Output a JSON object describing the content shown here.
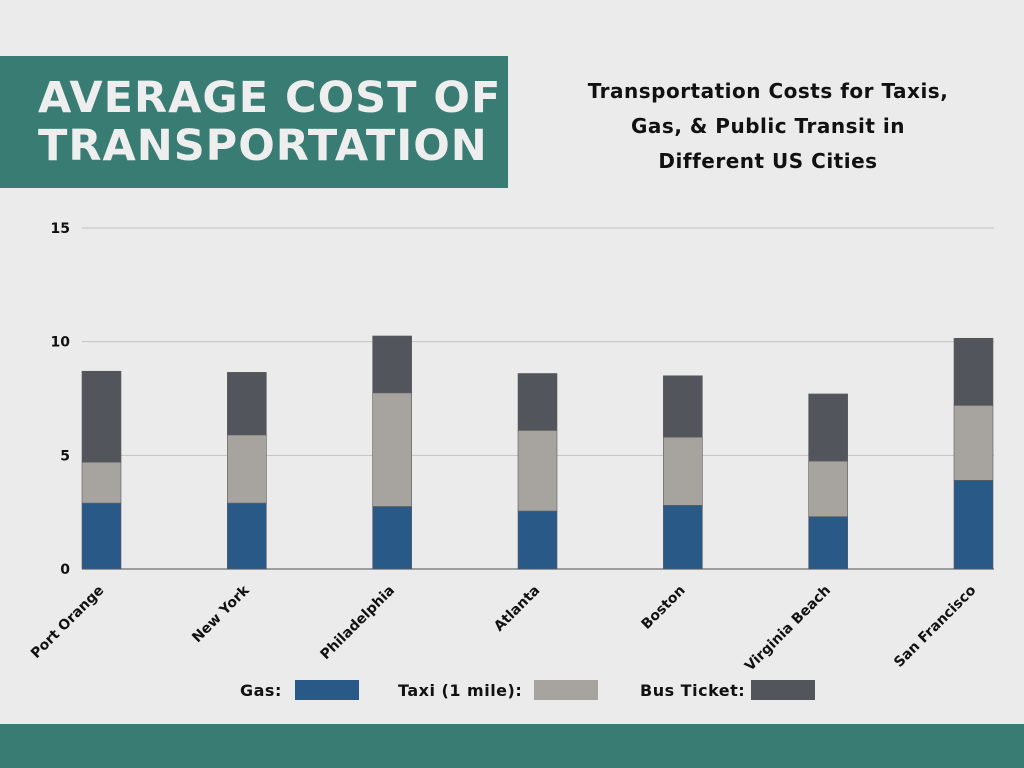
{
  "header": {
    "title_lines": [
      "AVERAGE COST OF",
      "TRANSPORTATION"
    ],
    "subtitle_lines": [
      "Transportation Costs for Taxis,",
      "Gas, & Public Transit in",
      "Different US Cities"
    ]
  },
  "colors": {
    "accent": "#387c74",
    "background": "#ebebeb",
    "gas": "#295a87",
    "taxi": "#a7a4a0",
    "bus": "#52565c"
  },
  "chart_data": {
    "type": "bar",
    "stacked": true,
    "title": "Transportation Costs for Taxis, Gas, & Public Transit in Different US Cities",
    "xlabel": "",
    "ylabel": "",
    "ylim": [
      0,
      15
    ],
    "yticks": [
      0,
      5,
      10,
      15
    ],
    "grid": true,
    "legend_position": "bottom",
    "categories": [
      "Port Orange",
      "New York",
      "Philadelphia",
      "Atlanta",
      "Boston",
      "Virginia Beach",
      "San Francisco"
    ],
    "series": [
      {
        "name": "Gas:",
        "color": "#295a87",
        "values": [
          2.9,
          2.9,
          2.75,
          2.55,
          2.8,
          2.3,
          3.9
        ]
      },
      {
        "name": "Taxi (1 mile):",
        "color": "#a7a4a0",
        "values": [
          1.8,
          3.0,
          5.0,
          3.55,
          3.0,
          2.45,
          3.3
        ]
      },
      {
        "name": "Bus Ticket:",
        "color": "#52565c",
        "values": [
          4.0,
          2.75,
          2.5,
          2.5,
          2.7,
          2.95,
          2.95
        ]
      }
    ]
  }
}
